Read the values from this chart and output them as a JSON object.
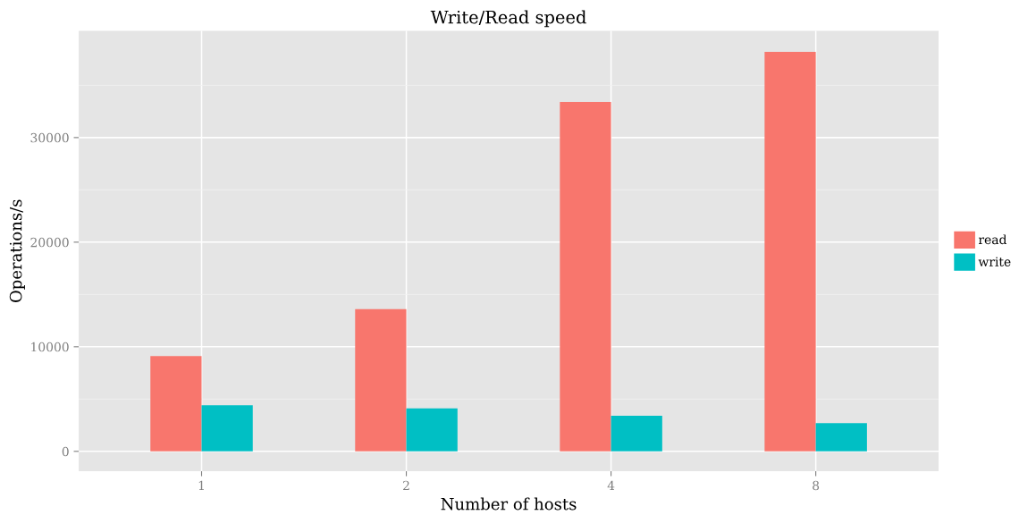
{
  "chart_data": {
    "type": "bar",
    "title": "Write/Read speed",
    "xlabel": "Number of hosts",
    "ylabel": "Operations/s",
    "categories": [
      "1",
      "2",
      "4",
      "8"
    ],
    "series": [
      {
        "name": "read",
        "color": "#f8766d",
        "values": [
          9100,
          13600,
          33400,
          38200
        ]
      },
      {
        "name": "write",
        "color": "#00bfc4",
        "values": [
          4400,
          4100,
          3400,
          2700
        ]
      }
    ],
    "ylim": [
      -1900,
      40200
    ],
    "yticks": [
      0,
      10000,
      20000,
      30000
    ],
    "grid": true,
    "legend": "right"
  }
}
